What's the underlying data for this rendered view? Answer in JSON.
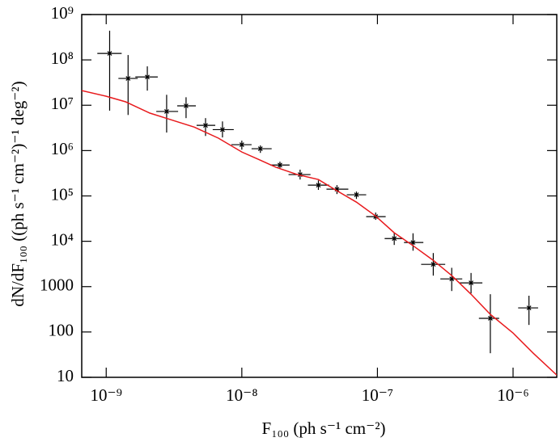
{
  "chart_data": {
    "type": "scatter",
    "xlabel": "F₁₀₀ (ph s⁻¹ cm⁻²)",
    "ylabel": "dN/dF₁₀₀ ((ph s⁻¹ cm⁻²)⁻¹ deg⁻²)",
    "x_log": true,
    "y_log": true,
    "xlim": [
      6.6e-10,
      2.1e-06
    ],
    "ylim": [
      10,
      1000000000
    ],
    "xticks": [
      {
        "value": 1e-09,
        "label": "10⁻⁹"
      },
      {
        "value": 1e-08,
        "label": "10⁻⁸"
      },
      {
        "value": 1e-07,
        "label": "10⁻⁷"
      },
      {
        "value": 1e-06,
        "label": "10⁻⁶"
      }
    ],
    "yticks": [
      10,
      100,
      1000,
      {
        "value": 10000,
        "label": "10⁴"
      },
      {
        "value": 100000,
        "label": "10⁵"
      },
      {
        "value": 1000000,
        "label": "10⁶"
      },
      {
        "value": 10000000,
        "label": "10⁷"
      },
      {
        "value": 100000000,
        "label": "10⁸"
      },
      {
        "value": 1000000000,
        "label": "10⁹"
      }
    ],
    "series": [
      {
        "type": "errorbar",
        "color": "#000000",
        "x": [
          1.06e-09,
          1.45e-09,
          2.01e-09,
          2.79e-09,
          3.88e-09,
          5.4e-09,
          7.2e-09,
          1e-08,
          1.37e-08,
          1.91e-08,
          2.69e-08,
          3.67e-08,
          5.03e-08,
          7e-08,
          9.7e-08,
          1.33e-07,
          1.83e-07,
          2.58e-07,
          3.53e-07,
          4.9e-07,
          6.8e-07,
          1.31e-06
        ],
        "values": [
          139000000.0,
          39000000.0,
          42000000.0,
          7300000.0,
          9700000.0,
          3600000.0,
          2900000.0,
          1350000.0,
          1100000.0,
          480000.0,
          296000.0,
          173000.0,
          141000.0,
          106000.0,
          35000.0,
          11500.0,
          9400.0,
          3100.0,
          1480.0,
          1210.0,
          200,
          340
        ],
        "x_low": [
          8.6e-10,
          1.23e-09,
          1.64e-09,
          2.34e-09,
          3.34e-09,
          4.64e-09,
          6.1e-09,
          8.37e-09,
          1.18e-08,
          1.62e-08,
          2.21e-08,
          3.07e-08,
          4.21e-08,
          5.94e-08,
          8.26e-08,
          1.13e-07,
          1.57e-07,
          2.1e-07,
          2.91e-07,
          4.04e-07,
          5.6e-07,
          1.09e-06
        ],
        "x_high": [
          1.3e-09,
          1.71e-09,
          2.4e-09,
          3.39e-09,
          4.58e-09,
          6.37e-09,
          8.72e-09,
          1.18e-08,
          1.66e-08,
          2.25e-08,
          3.21e-08,
          4.4e-08,
          6.1e-08,
          8.26e-08,
          1.15e-07,
          1.55e-07,
          2.18e-07,
          3.16e-07,
          4.22e-07,
          5.94e-07,
          7.9e-07,
          1.53e-06
        ],
        "y_low": [
          7600000.0,
          6100000.0,
          21000000.0,
          2500000.0,
          5200000.0,
          2100000.0,
          1950000.0,
          1050000.0,
          890000.0,
          410000.0,
          230000.0,
          136000.0,
          110000.0,
          86000.0,
          29700.0,
          8300.0,
          6200.0,
          1750.0,
          800,
          710,
          34,
          143
        ],
        "y_high": [
          440000000.0,
          128000000.0,
          72000000.0,
          17000000.0,
          15000000.0,
          5200000.0,
          4400000.0,
          1660000.0,
          1300000.0,
          570000.0,
          380000.0,
          220000.0,
          173000.0,
          125000.0,
          43000.0,
          15400.0,
          15000.0,
          5500.0,
          2600.0,
          2000.0,
          680,
          630
        ]
      },
      {
        "type": "line",
        "color": "#e8191c",
        "x": [
          6.6e-10,
          1e-09,
          1.39e-09,
          2.1e-09,
          2.75e-09,
          4.46e-09,
          6.72e-09,
          1e-08,
          1.33e-08,
          1.78e-08,
          2.57e-08,
          3.67e-08,
          5.03e-08,
          7e-08,
          9.7e-08,
          1.33e-07,
          1.83e-07,
          2.58e-07,
          3.53e-07,
          4.9e-07,
          6.8e-07,
          1e-06,
          1.41e-06,
          2.1e-06
        ],
        "values": [
          21000000.0,
          15800000.0,
          11900000.0,
          6700000.0,
          5200000.0,
          3300000.0,
          1880000.0,
          930000.0,
          640000.0,
          430000.0,
          296000.0,
          230000.0,
          130000.0,
          73000.0,
          36000.0,
          15400.0,
          8000.0,
          3800.0,
          1750.0,
          680,
          244,
          95,
          34,
          11.2
        ]
      }
    ]
  }
}
